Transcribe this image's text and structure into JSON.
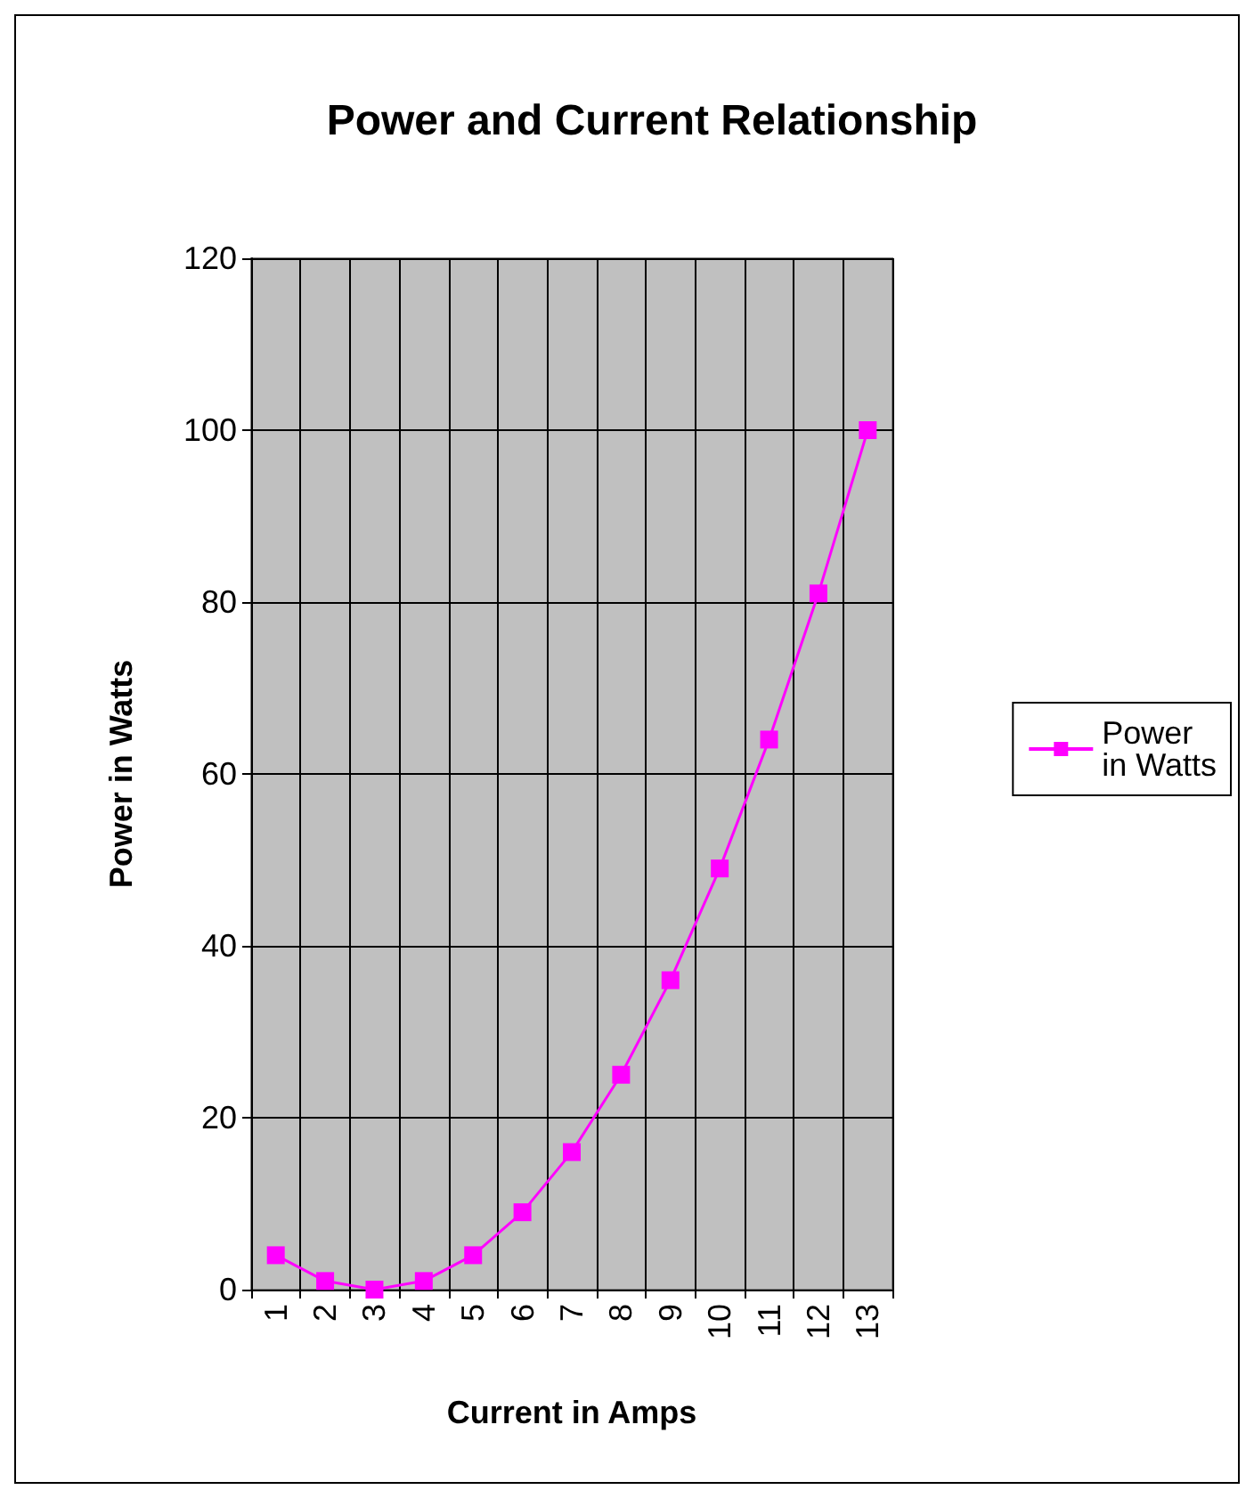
{
  "chart_data": {
    "type": "line",
    "title": "Power and Current Relationship",
    "xlabel": "Current in Amps",
    "ylabel": "Power in Watts",
    "categories": [
      "1",
      "2",
      "3",
      "4",
      "5",
      "6",
      "7",
      "8",
      "9",
      "10",
      "11",
      "12",
      "13"
    ],
    "series": [
      {
        "name": "Power in Watts",
        "color": "#ff00ff",
        "values": [
          4,
          1,
          0,
          1,
          4,
          9,
          16,
          25,
          36,
          49,
          64,
          81,
          100
        ]
      }
    ],
    "ylim": [
      0,
      120
    ],
    "yticks": [
      0,
      20,
      40,
      60,
      80,
      100,
      120
    ],
    "grid": true,
    "legend": "right",
    "marker": "square",
    "line_style": "solid"
  }
}
